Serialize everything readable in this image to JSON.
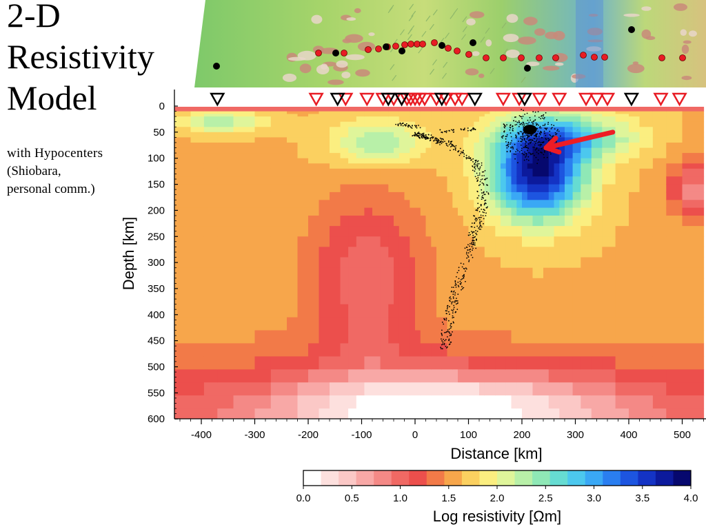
{
  "title_lines": [
    "2-D",
    "Resistivity",
    "Model"
  ],
  "subtitle_lines": [
    "with  Hypocenters",
    "(Shiobara,",
    "personal comm.)"
  ],
  "colors": {
    "palette": [
      "#ffffff",
      "#fde0de",
      "#fbc8c6",
      "#f8a8a6",
      "#f48986",
      "#f06964",
      "#ec4f4c",
      "#f27a48",
      "#f7a64b",
      "#fbd060",
      "#fbee80",
      "#dff59a",
      "#b8f0a8",
      "#8fe8b6",
      "#66dcd2",
      "#4cc8ee",
      "#3aa8f5",
      "#2a7ef0",
      "#1d55e0",
      "#1433c4",
      "#0c1a9c",
      "#06086e"
    ],
    "arrow": "#ee1c25",
    "station_red": "#e81c24",
    "station_black": "#000000",
    "hypocenter": "#000000"
  },
  "map_strip": {
    "description_icon": "topographic-map-with-station-dots"
  },
  "chart_data": {
    "type": "heatmap",
    "xlabel": "Distance [km]",
    "ylabel": "Depth [km]",
    "xlim": [
      -450,
      540
    ],
    "ylim": [
      600,
      -20
    ],
    "x_ticks": [
      -400,
      -300,
      -200,
      -100,
      0,
      100,
      200,
      300,
      400,
      500
    ],
    "y_ticks": [
      0,
      50,
      100,
      150,
      200,
      250,
      300,
      350,
      400,
      450,
      500,
      550,
      600
    ],
    "colorbar": {
      "label": "Log resistivity [Ωm]",
      "range": [
        0.0,
        4.0
      ],
      "ticks": [
        0.0,
        0.5,
        1.0,
        1.5,
        2.0,
        2.5,
        3.0,
        3.5,
        4.0
      ],
      "tick_labels": [
        "0.0",
        "0.5",
        "1.0",
        "1.5",
        "2.0",
        "2.5",
        "3.0",
        "3.5",
        "4.0"
      ]
    },
    "anomalies": [
      {
        "name": "resistive-body",
        "x": 230,
        "depth": 130,
        "rx": 110,
        "rdepth": 110,
        "log_rho": 3.9
      },
      {
        "name": "resistive-shallow-east",
        "x": 290,
        "depth": 60,
        "rx": 160,
        "rdepth": 55,
        "log_rho": 2.6
      },
      {
        "name": "resistive-shallow-mid",
        "x": -70,
        "depth": 70,
        "rx": 110,
        "rdepth": 55,
        "log_rho": 2.4
      },
      {
        "name": "resistive-shallow-west",
        "x": -360,
        "depth": 30,
        "rx": 90,
        "rdepth": 25,
        "log_rho": 2.4
      },
      {
        "name": "conductive-mantle-west",
        "x": -90,
        "depth": 330,
        "rx": 140,
        "rdepth": 200,
        "log_rho": 0.9
      },
      {
        "name": "conductive-east",
        "x": 530,
        "depth": 160,
        "rx": 70,
        "rdepth": 80,
        "log_rho": 0.8
      },
      {
        "name": "deep-conductor",
        "x": 50,
        "depth": 580,
        "rx": 420,
        "rdepth": 90,
        "log_rho": 0.3
      }
    ],
    "background_log_rho": 1.6,
    "stations_red_x": [
      -185,
      -130,
      -90,
      -60,
      -40,
      -25,
      -15,
      -8,
      0,
      8,
      18,
      40,
      58,
      75,
      88,
      165,
      195,
      233,
      270,
      320,
      340,
      360,
      460,
      495
    ],
    "stations_black_x": [
      -370,
      -145,
      -50,
      -25,
      50,
      112,
      205,
      405
    ],
    "hypocenters": {
      "slab_path": [
        [
          5,
          55
        ],
        [
          60,
          70
        ],
        [
          115,
          110
        ],
        [
          128,
          150
        ],
        [
          125,
          200
        ],
        [
          112,
          240
        ],
        [
          100,
          280
        ],
        [
          85,
          330
        ],
        [
          70,
          380
        ],
        [
          60,
          430
        ],
        [
          58,
          470
        ]
      ],
      "cluster_center": [
        215,
        45
      ],
      "shallow_cluster": [
        [
          -25,
          35
        ],
        [
          -5,
          40
        ],
        [
          60,
          48
        ],
        [
          100,
          45
        ]
      ],
      "count_approx": 900
    },
    "arrow": {
      "from": [
        370,
        50
      ],
      "to": [
        245,
        80
      ]
    }
  }
}
